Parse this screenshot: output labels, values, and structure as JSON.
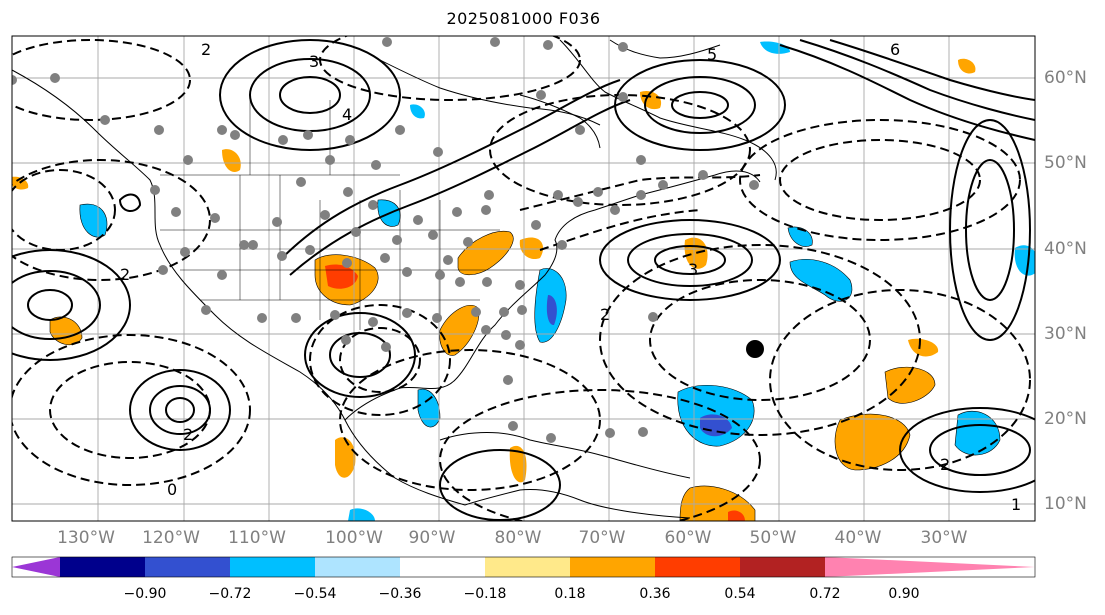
{
  "title": "2025081000 F036",
  "lon_labels": [
    "130°W",
    "120°W",
    "110°W",
    "100°W",
    "90°W",
    "80°W",
    "70°W",
    "60°W",
    "50°W",
    "40°W",
    "30°W"
  ],
  "lat_labels": [
    "60°N",
    "50°N",
    "40°N",
    "30°N",
    "20°N",
    "10°N"
  ],
  "colorbar": {
    "ticks": [
      "−0.90",
      "−0.72",
      "−0.54",
      "−0.36",
      "−0.18",
      "0.18",
      "0.36",
      "0.54",
      "0.72",
      "0.90"
    ],
    "colors": [
      "#9b36d6",
      "#00008c",
      "#3350d0",
      "#00bfff",
      "#aee4ff",
      "#ffffff",
      "#ffe98a",
      "#ffa500",
      "#ff3d00",
      "#b22222",
      "#ff82b0"
    ]
  },
  "contour_labels": [
    "2",
    "1",
    "0",
    "3",
    "4",
    "5",
    "6"
  ],
  "map": {
    "grid": true,
    "lon_range": [
      "140°W",
      "20°W"
    ],
    "lat_range": [
      "8°N",
      "65°N"
    ],
    "marker": "black-dot"
  }
}
